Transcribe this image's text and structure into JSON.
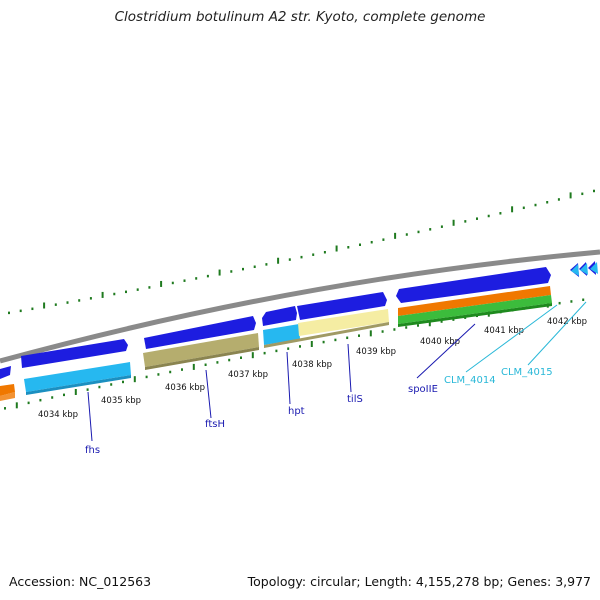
{
  "title": "Clostridium botulinum A2 str. Kyoto, complete genome",
  "footer": {
    "accession": "Accession: NC_012563",
    "summary": "Topology: circular; Length: 4,155,278 bp; Genes: 3,977"
  },
  "colors": {
    "backbone": "#8a8a8a",
    "cds_blue": "#1d1de0",
    "cds_cyan": "#26b8f0",
    "cds_olive": "#b5ad6e",
    "cds_khaki": "#f5eda3",
    "orange": "#f07800",
    "green": "#3cbc3c",
    "ticks": "#1f7a1f",
    "gene_label": "#1a1ab0",
    "clm_label": "#29b8d8"
  },
  "kbp_labels": [
    "4034 kbp",
    "4035 kbp",
    "4036 kbp",
    "4037 kbp",
    "4038 kbp",
    "4039 kbp",
    "4040 kbp",
    "4041 kbp",
    "4042 kbp"
  ],
  "gene_labels": [
    "fhs",
    "ftsH",
    "hpt",
    "tilS",
    "spoIIE",
    "CLM_4014",
    "CLM_4015"
  ]
}
